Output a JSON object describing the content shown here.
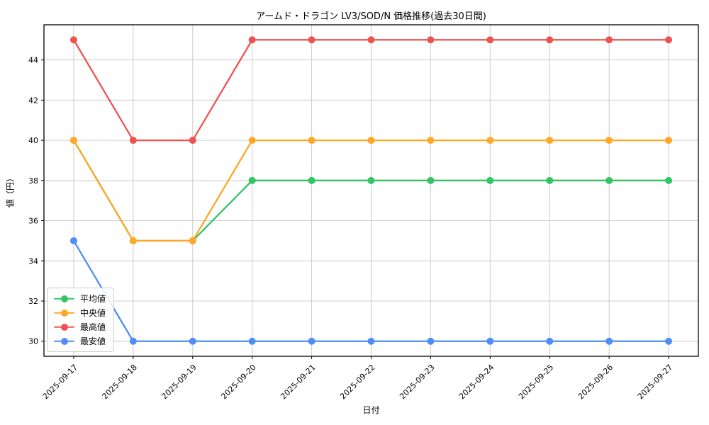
{
  "chart_data": {
    "type": "line",
    "title": "アームド・ドラゴン LV3/SOD/N 価格推移(過去30日間)",
    "xlabel": "日付",
    "ylabel": "値（円）",
    "x": [
      "2025-09-17",
      "2025-09-18",
      "2025-09-19",
      "2025-09-20",
      "2025-09-21",
      "2025-09-22",
      "2025-09-23",
      "2025-09-24",
      "2025-09-25",
      "2025-09-26",
      "2025-09-27"
    ],
    "series": [
      {
        "id": "average",
        "name": "平均値",
        "color": "#33c466",
        "values": [
          40,
          35,
          35,
          38,
          38,
          38,
          38,
          38,
          38,
          38,
          38
        ]
      },
      {
        "id": "median",
        "name": "中央値",
        "color": "#ffa726",
        "values": [
          40,
          35,
          35,
          40,
          40,
          40,
          40,
          40,
          40,
          40,
          40
        ]
      },
      {
        "id": "max",
        "name": "最高値",
        "color": "#ef5350",
        "values": [
          45,
          40,
          40,
          45,
          45,
          45,
          45,
          45,
          45,
          45,
          45
        ]
      },
      {
        "id": "min",
        "name": "最安値",
        "color": "#4f8ef7",
        "values": [
          35,
          30,
          30,
          30,
          30,
          30,
          30,
          30,
          30,
          30,
          30
        ]
      }
    ],
    "yticks": [
      30,
      32,
      34,
      36,
      38,
      40,
      42,
      44
    ],
    "ylim": [
      29.25,
      45.75
    ],
    "grid": true,
    "grid_color": "#cccccc",
    "spine_color": "#000000",
    "legend_position": "lower left"
  }
}
